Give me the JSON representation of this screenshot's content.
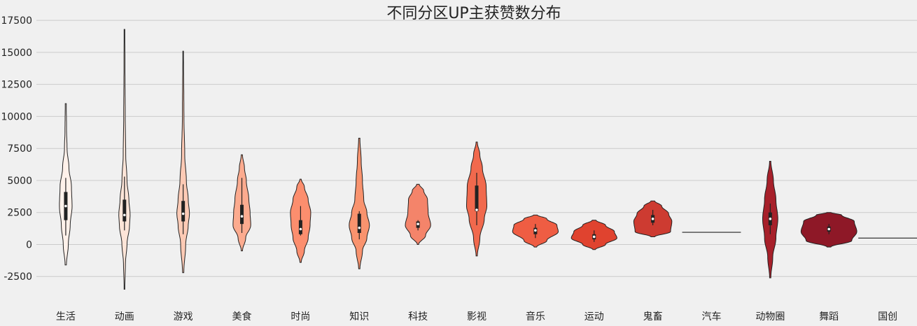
{
  "chart_data": {
    "type": "violin",
    "title": "不同分区UP主获赞数分布",
    "xlabel": "",
    "ylabel": "",
    "ylim": [
      -4400,
      18000
    ],
    "yticks": [
      -2500,
      0,
      2500,
      5000,
      7500,
      10000,
      12500,
      15000,
      17500
    ],
    "grid": "horizontal",
    "categories": [
      "生活",
      "动画",
      "游戏",
      "美食",
      "时尚",
      "知识",
      "科技",
      "影视",
      "音乐",
      "运动",
      "鬼畜",
      "汽车",
      "动物圈",
      "舞蹈",
      "国创"
    ],
    "series": [
      {
        "min": -1600,
        "max": 11000,
        "q1": 1900,
        "median": 3000,
        "q3": 4100,
        "whisker_low": 700,
        "whisker_high": 5200,
        "color": "#fff1ea",
        "profile": [
          [
            -1600,
            0.01
          ],
          [
            0,
            0.04
          ],
          [
            1500,
            0.07
          ],
          [
            3000,
            0.1
          ],
          [
            4500,
            0.09
          ],
          [
            6000,
            0.05
          ],
          [
            7500,
            0.02
          ],
          [
            9000,
            0.012
          ],
          [
            11000,
            0.008
          ]
        ]
      },
      {
        "min": -3500,
        "max": 16800,
        "q1": 1800,
        "median": 2300,
        "q3": 3500,
        "whisker_low": 1100,
        "whisker_high": 5300,
        "color": "#fee5d8",
        "profile": [
          [
            -3500,
            0.005
          ],
          [
            -1500,
            0.015
          ],
          [
            0,
            0.04
          ],
          [
            1500,
            0.08
          ],
          [
            2300,
            0.09
          ],
          [
            3500,
            0.07
          ],
          [
            5000,
            0.04
          ],
          [
            7000,
            0.02
          ],
          [
            10000,
            0.012
          ],
          [
            14000,
            0.008
          ],
          [
            16800,
            0.005
          ]
        ]
      },
      {
        "min": -2200,
        "max": 15100,
        "q1": 1800,
        "median": 2400,
        "q3": 3400,
        "whisker_low": 800,
        "whisker_high": 4700,
        "color": "#fdcab5",
        "profile": [
          [
            -2200,
            0.01
          ],
          [
            0,
            0.04
          ],
          [
            1500,
            0.08
          ],
          [
            2400,
            0.1
          ],
          [
            3500,
            0.08
          ],
          [
            5000,
            0.05
          ],
          [
            7000,
            0.025
          ],
          [
            10000,
            0.012
          ],
          [
            15100,
            0.005
          ]
        ]
      },
      {
        "min": -500,
        "max": 7000,
        "q1": 1600,
        "median": 2200,
        "q3": 3100,
        "whisker_low": 900,
        "whisker_high": 5200,
        "color": "#fcab8f",
        "profile": [
          [
            -500,
            0.01
          ],
          [
            500,
            0.06
          ],
          [
            1500,
            0.14
          ],
          [
            2500,
            0.13
          ],
          [
            3500,
            0.11
          ],
          [
            5000,
            0.07
          ],
          [
            6000,
            0.04
          ],
          [
            7000,
            0.01
          ]
        ]
      },
      {
        "min": -1400,
        "max": 5100,
        "q1": 800,
        "median": 1200,
        "q3": 1900,
        "whisker_low": 700,
        "whisker_high": 3000,
        "color": "#fc8e6e",
        "profile": [
          [
            -1400,
            0.01
          ],
          [
            -500,
            0.06
          ],
          [
            500,
            0.12
          ],
          [
            1500,
            0.15
          ],
          [
            2500,
            0.16
          ],
          [
            3500,
            0.12
          ],
          [
            4500,
            0.06
          ],
          [
            5100,
            0.01
          ]
        ]
      },
      {
        "min": -1900,
        "max": 8300,
        "q1": 900,
        "median": 1300,
        "q3": 2400,
        "whisker_low": 400,
        "whisker_high": 2600,
        "color": "#f9936e",
        "profile": [
          [
            -1900,
            0.01
          ],
          [
            -500,
            0.05
          ],
          [
            500,
            0.12
          ],
          [
            1500,
            0.16
          ],
          [
            2500,
            0.12
          ],
          [
            3500,
            0.07
          ],
          [
            5000,
            0.05
          ],
          [
            6500,
            0.03
          ],
          [
            8300,
            0.01
          ]
        ]
      },
      {
        "min": 0,
        "max": 4700,
        "q1": 1300,
        "median": 1600,
        "q3": 1800,
        "whisker_low": 1100,
        "whisker_high": 1900,
        "color": "#f4846a",
        "profile": [
          [
            0,
            0.01
          ],
          [
            700,
            0.12
          ],
          [
            1500,
            0.2
          ],
          [
            2500,
            0.16
          ],
          [
            3500,
            0.15
          ],
          [
            4200,
            0.09
          ],
          [
            4700,
            0.02
          ]
        ]
      },
      {
        "min": -900,
        "max": 8000,
        "q1": 2600,
        "median": 2700,
        "q3": 4600,
        "whisker_low": 1500,
        "whisker_high": 5600,
        "color": "#f1694d",
        "profile": [
          [
            -900,
            0.01
          ],
          [
            500,
            0.05
          ],
          [
            2000,
            0.12
          ],
          [
            3000,
            0.16
          ],
          [
            4500,
            0.15
          ],
          [
            6000,
            0.09
          ],
          [
            7000,
            0.05
          ],
          [
            8000,
            0.01
          ]
        ]
      },
      {
        "min": -200,
        "max": 2300,
        "q1": 800,
        "median": 1100,
        "q3": 1300,
        "whisker_low": 500,
        "whisker_high": 1600,
        "color": "#ef5d43",
        "profile": [
          [
            -200,
            0.02
          ],
          [
            300,
            0.18
          ],
          [
            1000,
            0.36
          ],
          [
            1500,
            0.34
          ],
          [
            2000,
            0.18
          ],
          [
            2300,
            0.03
          ]
        ]
      },
      {
        "min": -400,
        "max": 1900,
        "q1": 400,
        "median": 600,
        "q3": 800,
        "whisker_low": 200,
        "whisker_high": 1100,
        "color": "#e0432f",
        "profile": [
          [
            -400,
            0.02
          ],
          [
            0,
            0.18
          ],
          [
            500,
            0.36
          ],
          [
            1000,
            0.32
          ],
          [
            1500,
            0.18
          ],
          [
            1900,
            0.03
          ]
        ]
      },
      {
        "min": 600,
        "max": 3400,
        "q1": 1700,
        "median": 2000,
        "q3": 2300,
        "whisker_low": 1500,
        "whisker_high": 2700,
        "color": "#cd3b31",
        "profile": [
          [
            600,
            0.03
          ],
          [
            1000,
            0.28
          ],
          [
            1800,
            0.3
          ],
          [
            2400,
            0.25
          ],
          [
            3000,
            0.14
          ],
          [
            3400,
            0.03
          ]
        ]
      },
      {
        "min": 950,
        "max": 950,
        "q1": 950,
        "median": 950,
        "q3": 950,
        "whisker_low": 950,
        "whisker_high": 950,
        "color": "#b92c2a",
        "profile": [
          [
            949,
            0.4
          ],
          [
            951,
            0.4
          ]
        ]
      },
      {
        "min": -2600,
        "max": 6500,
        "q1": 1500,
        "median": 2000,
        "q3": 2500,
        "whisker_low": 800,
        "whisker_high": 3200,
        "color": "#a7202a",
        "profile": [
          [
            -2600,
            0.01
          ],
          [
            -1000,
            0.04
          ],
          [
            500,
            0.09
          ],
          [
            2000,
            0.12
          ],
          [
            3500,
            0.09
          ],
          [
            5000,
            0.05
          ],
          [
            6500,
            0.01
          ]
        ]
      },
      {
        "min": -200,
        "max": 2500,
        "q1": 1000,
        "median": 1200,
        "q3": 1400,
        "whisker_low": 800,
        "whisker_high": 1600,
        "color": "#8e1827",
        "profile": [
          [
            -200,
            0.03
          ],
          [
            300,
            0.36
          ],
          [
            1000,
            0.44
          ],
          [
            1800,
            0.4
          ],
          [
            2300,
            0.2
          ],
          [
            2500,
            0.03
          ]
        ]
      },
      {
        "min": 500,
        "max": 500,
        "q1": 500,
        "median": 500,
        "q3": 500,
        "whisker_low": 500,
        "whisker_high": 500,
        "color": "#6f0f1f",
        "profile": [
          [
            499,
            0.4
          ],
          [
            501,
            0.4
          ]
        ]
      }
    ]
  }
}
